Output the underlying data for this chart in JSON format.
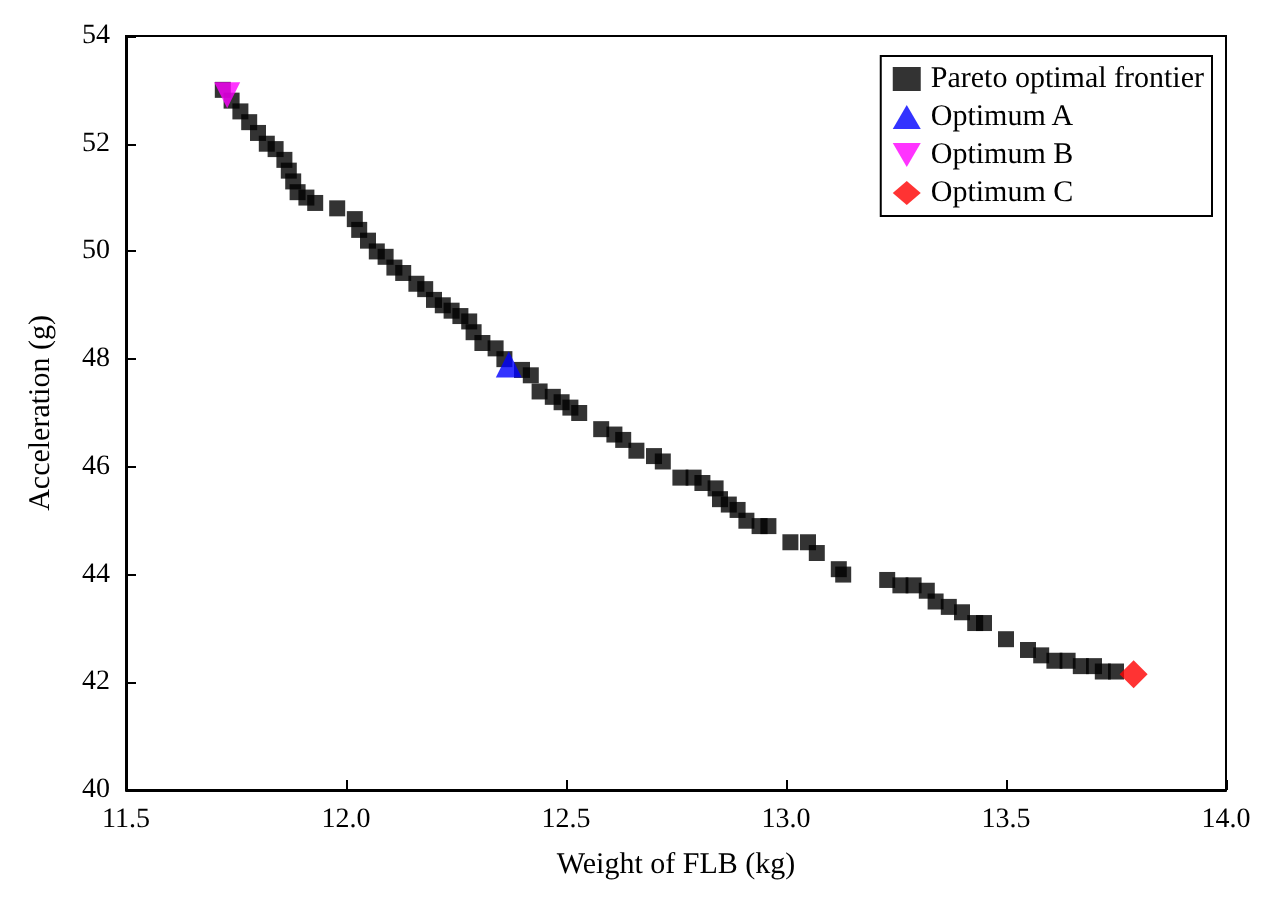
{
  "chart_data": {
    "type": "scatter",
    "xlabel": "Weight of FLB (kg)",
    "ylabel": "Acceleration (g)",
    "xlim": [
      11.5,
      14.0
    ],
    "xticks": [
      {
        "value": 11.5,
        "label": "11.5"
      },
      {
        "value": 12,
        "label": "12.0"
      },
      {
        "value": 12.5,
        "label": "12.5"
      },
      {
        "value": 13,
        "label": "13.0"
      },
      {
        "value": 13.5,
        "label": "13.5"
      },
      {
        "value": 14,
        "label": "14.0"
      }
    ],
    "ylim": [
      40,
      54
    ],
    "yticks": [
      40,
      42,
      44,
      46,
      48,
      50,
      52,
      54
    ],
    "grid": false,
    "legend": "top right",
    "series": [
      {
        "name": "Pareto optimal frontier",
        "color": "#000000",
        "marker": "square",
        "x": [
          11.72,
          11.74,
          11.76,
          11.78,
          11.8,
          11.82,
          11.84,
          11.86,
          11.87,
          11.88,
          11.89,
          11.91,
          11.93,
          11.98,
          12.02,
          12.03,
          12.05,
          12.07,
          12.09,
          12.11,
          12.13,
          12.16,
          12.18,
          12.2,
          12.22,
          12.24,
          12.26,
          12.28,
          12.29,
          12.31,
          12.34,
          12.36,
          12.4,
          12.42,
          12.44,
          12.47,
          12.49,
          12.51,
          12.53,
          12.58,
          12.61,
          12.63,
          12.66,
          12.7,
          12.72,
          12.76,
          12.79,
          12.81,
          12.84,
          12.85,
          12.87,
          12.89,
          12.91,
          12.94,
          12.96,
          13.01,
          13.05,
          13.07,
          13.12,
          13.13,
          13.23,
          13.26,
          13.29,
          13.32,
          13.34,
          13.37,
          13.4,
          13.43,
          13.45,
          13.5,
          13.55,
          13.58,
          13.61,
          13.64,
          13.67,
          13.7,
          13.72,
          13.75
        ],
        "values": [
          53.0,
          52.8,
          52.6,
          52.4,
          52.2,
          52.0,
          51.9,
          51.7,
          51.5,
          51.3,
          51.1,
          51.0,
          50.9,
          50.8,
          50.6,
          50.4,
          50.2,
          50.0,
          49.9,
          49.7,
          49.6,
          49.4,
          49.3,
          49.1,
          49.0,
          48.9,
          48.8,
          48.7,
          48.5,
          48.3,
          48.2,
          48.0,
          47.8,
          47.7,
          47.4,
          47.3,
          47.2,
          47.1,
          47.0,
          46.7,
          46.6,
          46.5,
          46.3,
          46.2,
          46.1,
          45.8,
          45.8,
          45.7,
          45.6,
          45.4,
          45.3,
          45.2,
          45.0,
          44.9,
          44.9,
          44.6,
          44.6,
          44.4,
          44.1,
          44.0,
          43.9,
          43.8,
          43.8,
          43.7,
          43.5,
          43.4,
          43.3,
          43.1,
          43.1,
          42.8,
          42.6,
          42.5,
          42.4,
          42.4,
          42.3,
          42.3,
          42.2,
          42.2
        ]
      },
      {
        "name": "Optimum A",
        "color": "#0000ff",
        "marker": "triangle",
        "x": [
          12.37
        ],
        "values": [
          47.9
        ]
      },
      {
        "name": "Optimum B",
        "color": "#ff00ff",
        "marker": "triangle-down",
        "x": [
          11.73
        ],
        "values": [
          52.9
        ]
      },
      {
        "name": "Optimum C",
        "color": "#ff0000",
        "marker": "diamond",
        "x": [
          13.79
        ],
        "values": [
          42.15
        ]
      }
    ]
  }
}
